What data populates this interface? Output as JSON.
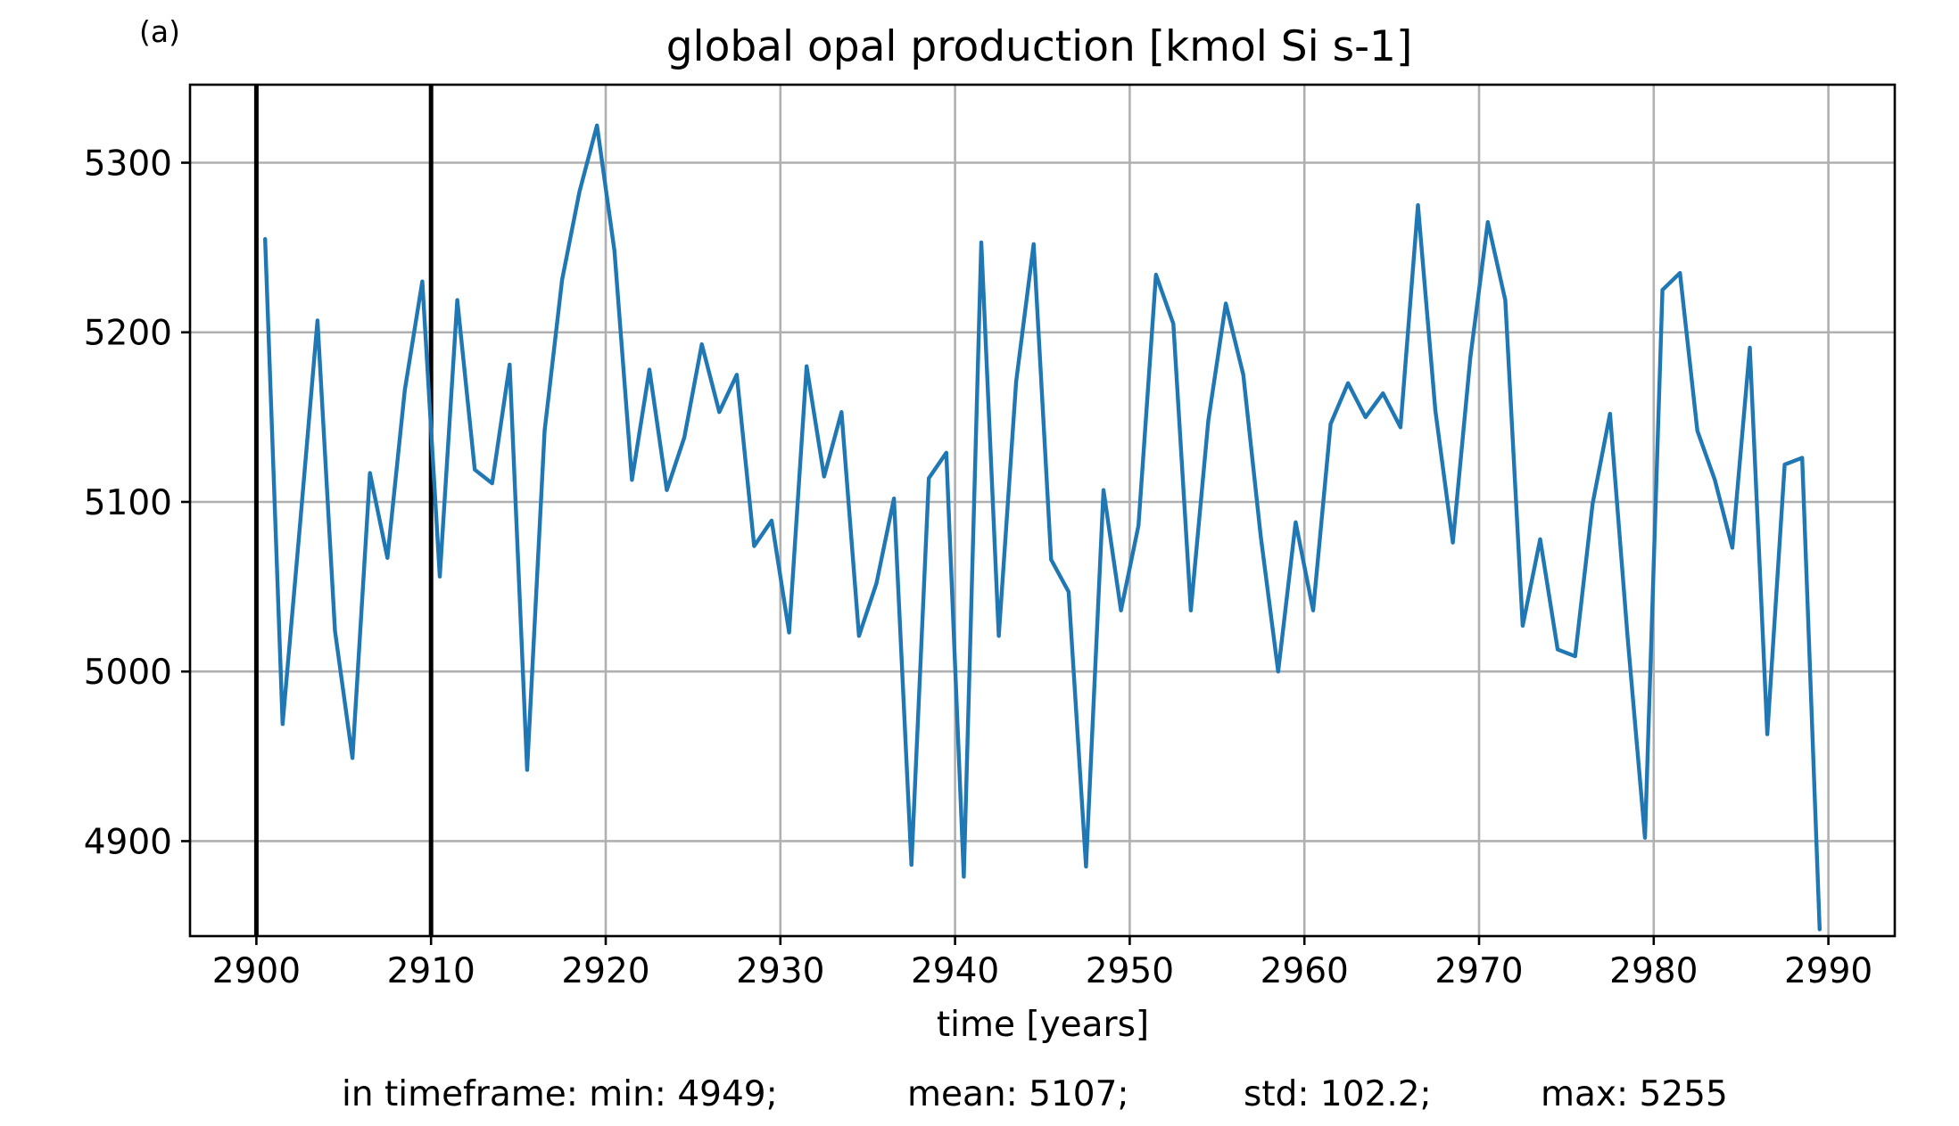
{
  "chart_data": {
    "type": "line",
    "panel_label": "(a)",
    "title": "global opal production [kmol Si s-1]",
    "xlabel": "time [years]",
    "ylabel": "",
    "xlim": [
      2896.2,
      2993.8
    ],
    "ylim": [
      4844,
      5346
    ],
    "x_ticks": [
      2900,
      2910,
      2920,
      2930,
      2940,
      2950,
      2960,
      2970,
      2980,
      2990
    ],
    "y_ticks": [
      4900,
      5000,
      5100,
      5200,
      5300
    ],
    "grid": true,
    "vertical_markers": [
      2900,
      2910
    ],
    "series_color": "#1f77b4",
    "marker_color": "#000000",
    "series": [
      {
        "x": [
          2900.5,
          2901.5,
          2902.5,
          2903.5,
          2904.5,
          2905.5,
          2906.5,
          2907.5,
          2908.5,
          2909.5,
          2910.5,
          2911.5,
          2912.5,
          2913.5,
          2914.5,
          2915.5,
          2916.5,
          2917.5,
          2918.5,
          2919.5,
          2920.5,
          2921.5,
          2922.5,
          2923.5,
          2924.5,
          2925.5,
          2926.5,
          2927.5,
          2928.5,
          2929.5,
          2930.5,
          2931.5,
          2932.5,
          2933.5,
          2934.5,
          2935.5,
          2936.5,
          2937.5,
          2938.5,
          2939.5,
          2940.5,
          2941.5,
          2942.5,
          2943.5,
          2944.5,
          2945.5,
          2946.5,
          2947.5,
          2948.5,
          2949.5,
          2950.5,
          2951.5,
          2952.5,
          2953.5,
          2954.5,
          2955.5,
          2956.5,
          2957.5,
          2958.5,
          2959.5,
          2960.5,
          2961.5,
          2962.5,
          2963.5,
          2964.5,
          2965.5,
          2966.5,
          2967.5,
          2968.5,
          2969.5,
          2970.5,
          2971.5,
          2972.5,
          2973.5,
          2974.5,
          2975.5,
          2976.5,
          2977.5,
          2978.5,
          2979.5,
          2980.5,
          2981.5,
          2982.5,
          2983.5,
          2984.5,
          2985.5,
          2986.5,
          2987.5,
          2988.5,
          2989.5
        ],
        "y": [
          5255,
          4969,
          5087,
          5207,
          5024,
          4949,
          5117,
          5067,
          5166,
          5230,
          5056,
          5219,
          5119,
          5111,
          5181,
          4942,
          5142,
          5231,
          5283,
          5322,
          5248,
          5113,
          5178,
          5107,
          5138,
          5193,
          5153,
          5175,
          5074,
          5089,
          5023,
          5180,
          5115,
          5153,
          5021,
          5052,
          5102,
          4886,
          5114,
          5129,
          4879,
          5253,
          5021,
          5171,
          5252,
          5066,
          5047,
          4885,
          5107,
          5036,
          5086,
          5234,
          5205,
          5036,
          5148,
          5217,
          5175,
          5080,
          5000,
          5088,
          5036,
          5146,
          5170,
          5150,
          5164,
          5144,
          5275,
          5154,
          5076,
          5185,
          5265,
          5219,
          5027,
          5078,
          5013,
          5009,
          5099,
          5152,
          5021,
          4902,
          5225,
          5235,
          5142,
          5113,
          5073,
          5191,
          4963,
          5122,
          5126,
          4848
        ]
      }
    ],
    "footer": {
      "min_text": "in timeframe: min: 4949;",
      "mean_text": "mean: 5107;",
      "std_text": "std: 102.2;",
      "max_text": "max: 5255"
    }
  }
}
